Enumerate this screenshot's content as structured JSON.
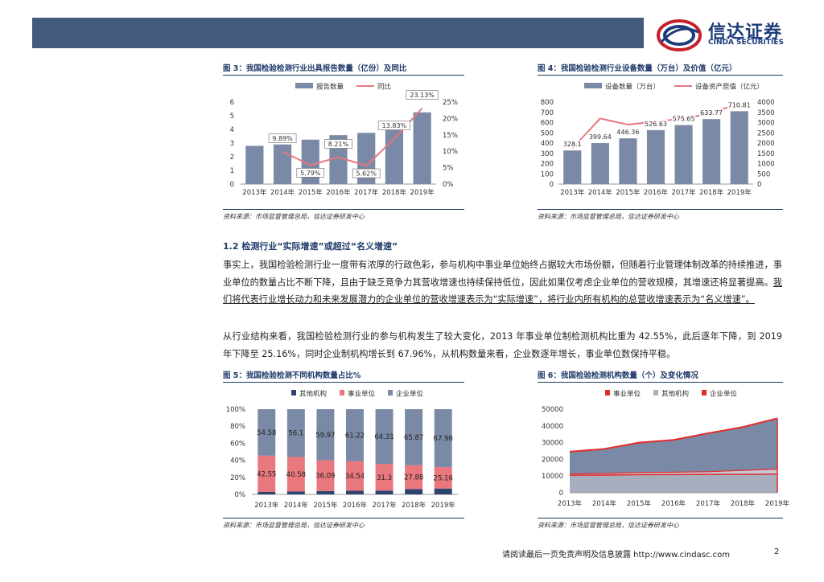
{
  "header": {
    "logo_cn": "信达证券",
    "logo_en": "CINDA SECURITIES"
  },
  "colors": {
    "bar": "#7a8aa6",
    "line": "#e8777e",
    "navy": "#2e4470",
    "red": "#e32b2b",
    "grey": "#a7aebd"
  },
  "figures": [
    {
      "title": "图 3：我国检验检测行业出具报告数量（亿份）及同比",
      "source": "资料来源：市场监督管理总局，信达证券研发中心",
      "legend": [
        "报告数量",
        "同比"
      ]
    },
    {
      "title": "图 4：我国检验检测行业设备数量（万台）及价值（亿元）",
      "source": "资料来源：市场监督管理总局，信达证券研发中心",
      "legend": [
        "设备数量（万台）",
        "设备资产原值（亿元）"
      ]
    },
    {
      "title": "图 5：我国检验检测不同机构数量占比%",
      "source": "资料来源：市场监督管理总局，信达证券研发中心",
      "legend": [
        "其他机构",
        "事业单位",
        "企业单位"
      ]
    },
    {
      "title": "图 6：我国检验检测机构数量（个）及变化情况",
      "source": "资料来源：市场监督管理总局，信达证券研发中心",
      "legend": [
        "事业单位",
        "其他机构",
        "企业单位"
      ]
    }
  ],
  "chart_data": [
    {
      "type": "bar",
      "categories": [
        "2013年",
        "2014年",
        "2015年",
        "2016年",
        "2017年",
        "2018年",
        "2019年"
      ],
      "series": [
        {
          "name": "报告数量",
          "type": "bar",
          "axis": "left",
          "values": [
            2.8,
            2.9,
            3.25,
            3.58,
            3.75,
            4.28,
            5.25
          ]
        },
        {
          "name": "同比",
          "type": "line",
          "axis": "right",
          "values": [
            null,
            9.89,
            5.79,
            8.21,
            5.62,
            13.83,
            23.13
          ],
          "labels": [
            "",
            "9.89%",
            "5.79%",
            "8.21%",
            "5.62%",
            "13.83%",
            "23.13%"
          ]
        }
      ],
      "y_left_ticks": [
        "0",
        "1",
        "2",
        "3",
        "4",
        "5",
        "6"
      ],
      "y_right_ticks": [
        "0%",
        "5%",
        "10%",
        "15%",
        "20%",
        "25%"
      ],
      "ylim_left": [
        0,
        6
      ],
      "ylim_right": [
        0,
        25
      ],
      "legend_position": "top"
    },
    {
      "type": "bar",
      "categories": [
        "2013年",
        "2014年",
        "2015年",
        "2016年",
        "2017年",
        "2018年",
        "2019年"
      ],
      "series": [
        {
          "name": "设备数量（万台）",
          "type": "bar",
          "axis": "left",
          "values": [
            328.1,
            399.64,
            446.36,
            526.63,
            575.65,
            633.77,
            710.81
          ],
          "labels": [
            "328.1",
            "399.64",
            "446.36",
            "526.63",
            "575.65",
            "633.77",
            "710.81"
          ]
        },
        {
          "name": "设备资产原值（亿元）",
          "type": "line",
          "axis": "right",
          "values": [
            1750,
            3200,
            2900,
            3050,
            3200,
            3450,
            3950
          ]
        }
      ],
      "y_left_ticks": [
        "0",
        "100",
        "200",
        "300",
        "400",
        "500",
        "600",
        "700",
        "800"
      ],
      "y_right_ticks": [
        "0",
        "500",
        "1000",
        "1500",
        "2000",
        "2500",
        "3000",
        "3500",
        "4000"
      ],
      "ylim_left": [
        0,
        800
      ],
      "ylim_right": [
        0,
        4000
      ],
      "legend_position": "top"
    },
    {
      "type": "bar",
      "stacked": true,
      "categories": [
        "2013年",
        "2014年",
        "2015年",
        "2016年",
        "2017年",
        "2018年",
        "2019年"
      ],
      "series": [
        {
          "name": "其他机构",
          "values": [
            2.87,
            3.32,
            3.94,
            4.24,
            4.39,
            6.25,
            6.88
          ]
        },
        {
          "name": "事业单位",
          "values": [
            42.55,
            40.58,
            36.09,
            34.54,
            31.3,
            27.88,
            25.16
          ],
          "labels": [
            "42.55",
            "40.58",
            "36.09",
            "34.54",
            "31.3",
            "27.88",
            "25.16"
          ]
        },
        {
          "name": "企业单位",
          "values": [
            54.58,
            56.1,
            59.97,
            61.22,
            64.31,
            65.87,
            67.96
          ],
          "labels": [
            "54.58",
            "56.1",
            "59.97",
            "61.22",
            "64.31",
            "65.87",
            "67.96"
          ]
        }
      ],
      "y_ticks": [
        "0%",
        "20%",
        "40%",
        "60%",
        "80%",
        "100%"
      ],
      "ylim": [
        0,
        100
      ],
      "legend_position": "top"
    },
    {
      "type": "area",
      "stacked": true,
      "categories": [
        "2013年",
        "2014年",
        "2015年",
        "2016年",
        "2017年",
        "2018年",
        "2019年"
      ],
      "series": [
        {
          "name": "事业单位",
          "values": [
            10500,
            10600,
            10800,
            10900,
            11000,
            11000,
            11200
          ]
        },
        {
          "name": "其他机构",
          "values": [
            700,
            900,
            1300,
            1400,
            1600,
            2400,
            3000
          ]
        },
        {
          "name": "企业单位",
          "values": [
            13400,
            14700,
            17900,
            19300,
            23000,
            25900,
            30300
          ]
        }
      ],
      "y_ticks": [
        "0",
        "10000",
        "20000",
        "30000",
        "40000",
        "50000"
      ],
      "ylim": [
        0,
        50000
      ],
      "legend_position": "top"
    }
  ],
  "section": {
    "title": "1.2 检测行业“实际增速”或超过“名义增速”",
    "para1_text": "事实上，我国检验检测行业一度带有浓厚的行政色彩，参与机构中事业单位始终占据较大市场份额，但随着行业管理体制改革的持续推进，事业单位的数量占比不断下降，且由于缺乏竞争力其营收增速也持续保持低位，因此如果仅考虑企业单位的营收规模，其增速还将显著提高。",
    "para1_underlined": "我们将代表行业增长动力和未来发展潜力的企业单位的营收增速表示为“实际增速”，将行业内所有机构的总营收增速表示为“名义增速”。",
    "para2": "从行业结构来看，我国检验检测行业的参与机构发生了较大变化，2013 年事业单位制检测机构比重为 42.55%，此后逐年下降，到 2019 年下降至 25.16%，同时企业制机构增长到 67.96%，从机构数量来看，企业数逐年增长，事业单位数保持平稳。"
  },
  "footer": {
    "note": "请阅读最后一页免责声明及信息披露 http://www.cindasc.com",
    "page": "2"
  }
}
